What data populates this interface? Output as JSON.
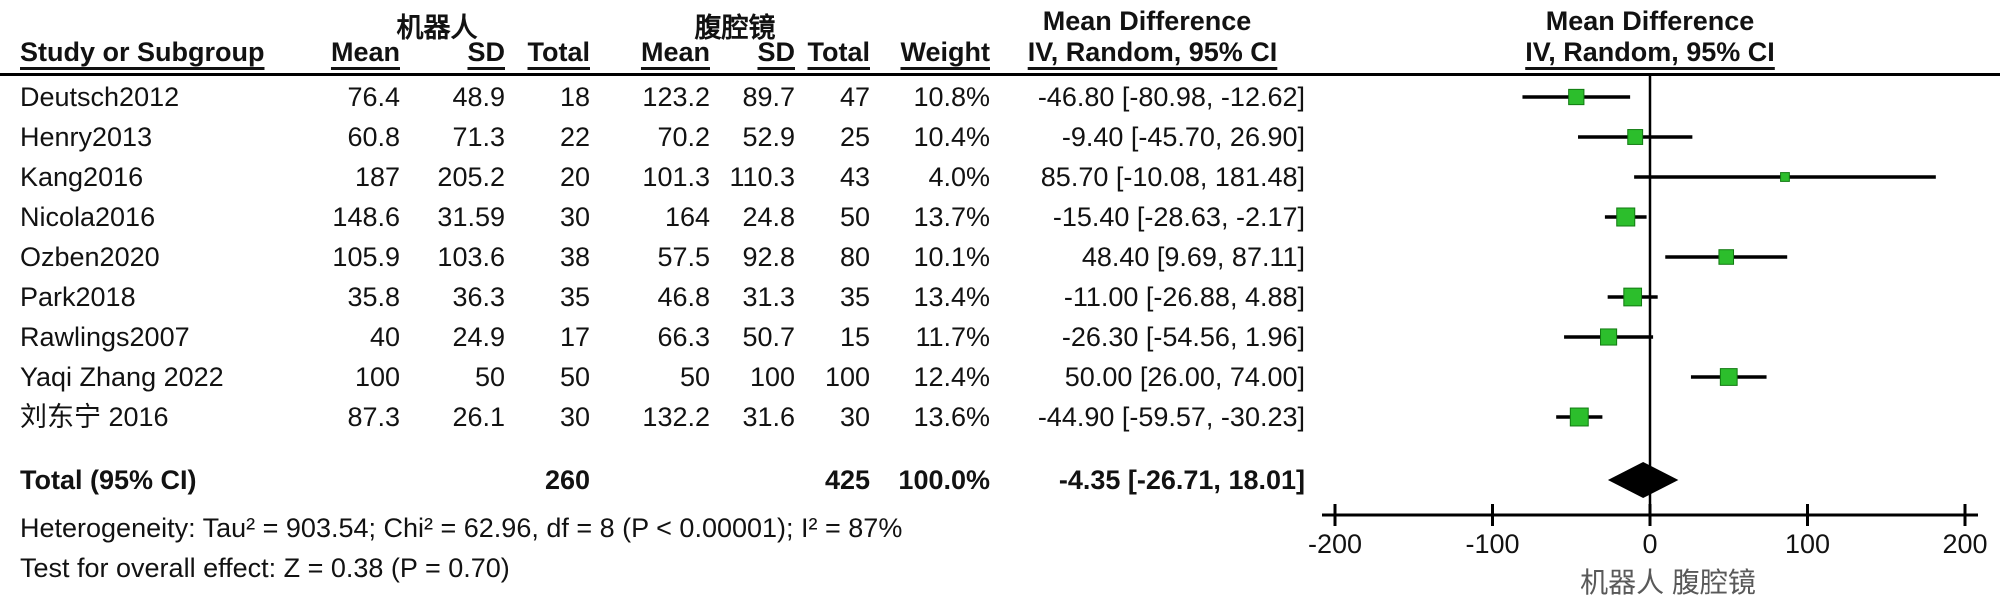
{
  "table_header": {
    "study": "Study or Subgroup",
    "mean": "Mean",
    "sd": "SD",
    "total": "Total",
    "weight": "Weight"
  },
  "chart_data": {
    "type": "forest",
    "effect_measure": "Mean Difference",
    "method": "IV, Random, 95% CI",
    "group1_label": "机器人",
    "group2_label": "腹腔镜",
    "axis": {
      "min": -200,
      "max": 200,
      "ticks": [
        -200,
        -100,
        0,
        100,
        200
      ]
    },
    "axis_footer": "机器人  腹腔镜",
    "studies": [
      {
        "name": "Deutsch2012",
        "mean1": "76.4",
        "sd1": "48.9",
        "total1": "18",
        "mean2": "123.2",
        "sd2": "89.7",
        "total2": "47",
        "weight": "10.8%",
        "ci_label": "-46.80 [-80.98, -12.62]",
        "md": -46.8,
        "lo": -80.98,
        "hi": -12.62
      },
      {
        "name": "Henry2013",
        "mean1": "60.8",
        "sd1": "71.3",
        "total1": "22",
        "mean2": "70.2",
        "sd2": "52.9",
        "total2": "25",
        "weight": "10.4%",
        "ci_label": "-9.40 [-45.70, 26.90]",
        "md": -9.4,
        "lo": -45.7,
        "hi": 26.9
      },
      {
        "name": "Kang2016",
        "mean1": "187",
        "sd1": "205.2",
        "total1": "20",
        "mean2": "101.3",
        "sd2": "110.3",
        "total2": "43",
        "weight": "4.0%",
        "ci_label": "85.70 [-10.08, 181.48]",
        "md": 85.7,
        "lo": -10.08,
        "hi": 181.48
      },
      {
        "name": "Nicola2016",
        "mean1": "148.6",
        "sd1": "31.59",
        "total1": "30",
        "mean2": "164",
        "sd2": "24.8",
        "total2": "50",
        "weight": "13.7%",
        "ci_label": "-15.40 [-28.63, -2.17]",
        "md": -15.4,
        "lo": -28.63,
        "hi": -2.17
      },
      {
        "name": "Ozben2020",
        "mean1": "105.9",
        "sd1": "103.6",
        "total1": "38",
        "mean2": "57.5",
        "sd2": "92.8",
        "total2": "80",
        "weight": "10.1%",
        "ci_label": "48.40 [9.69, 87.11]",
        "md": 48.4,
        "lo": 9.69,
        "hi": 87.11
      },
      {
        "name": "Park2018",
        "mean1": "35.8",
        "sd1": "36.3",
        "total1": "35",
        "mean2": "46.8",
        "sd2": "31.3",
        "total2": "35",
        "weight": "13.4%",
        "ci_label": "-11.00 [-26.88, 4.88]",
        "md": -11.0,
        "lo": -26.88,
        "hi": 4.88
      },
      {
        "name": "Rawlings2007",
        "mean1": "40",
        "sd1": "24.9",
        "total1": "17",
        "mean2": "66.3",
        "sd2": "50.7",
        "total2": "15",
        "weight": "11.7%",
        "ci_label": "-26.30 [-54.56, 1.96]",
        "md": -26.3,
        "lo": -54.56,
        "hi": 1.96
      },
      {
        "name": "Yaqi Zhang 2022",
        "mean1": "100",
        "sd1": "50",
        "total1": "50",
        "mean2": "50",
        "sd2": "100",
        "total2": "100",
        "weight": "12.4%",
        "ci_label": "50.00 [26.00, 74.00]",
        "md": 50.0,
        "lo": 26.0,
        "hi": 74.0
      },
      {
        "name": "刘东宁 2016",
        "mean1": "87.3",
        "sd1": "26.1",
        "total1": "30",
        "mean2": "132.2",
        "sd2": "31.6",
        "total2": "30",
        "weight": "13.6%",
        "ci_label": "-44.90 [-59.57, -30.23]",
        "md": -44.9,
        "lo": -59.57,
        "hi": -30.23
      }
    ],
    "total": {
      "label": "Total (95% CI)",
      "total1": "260",
      "total2": "425",
      "weight": "100.0%",
      "ci_label": "-4.35 [-26.71, 18.01]",
      "md": -4.35,
      "lo": -26.71,
      "hi": 18.01
    }
  },
  "footnotes": {
    "heterogeneity": "Heterogeneity: Tau² = 903.54; Chi² = 62.96, df = 8 (P < 0.00001); I² = 87%",
    "overall_effect": "Test for overall effect: Z = 0.38 (P = 0.70)"
  },
  "colors": {
    "marker_fill": "#2cbe2c",
    "marker_border": "#117a11",
    "line_black": "#000000",
    "footer_grey": "#595959"
  }
}
